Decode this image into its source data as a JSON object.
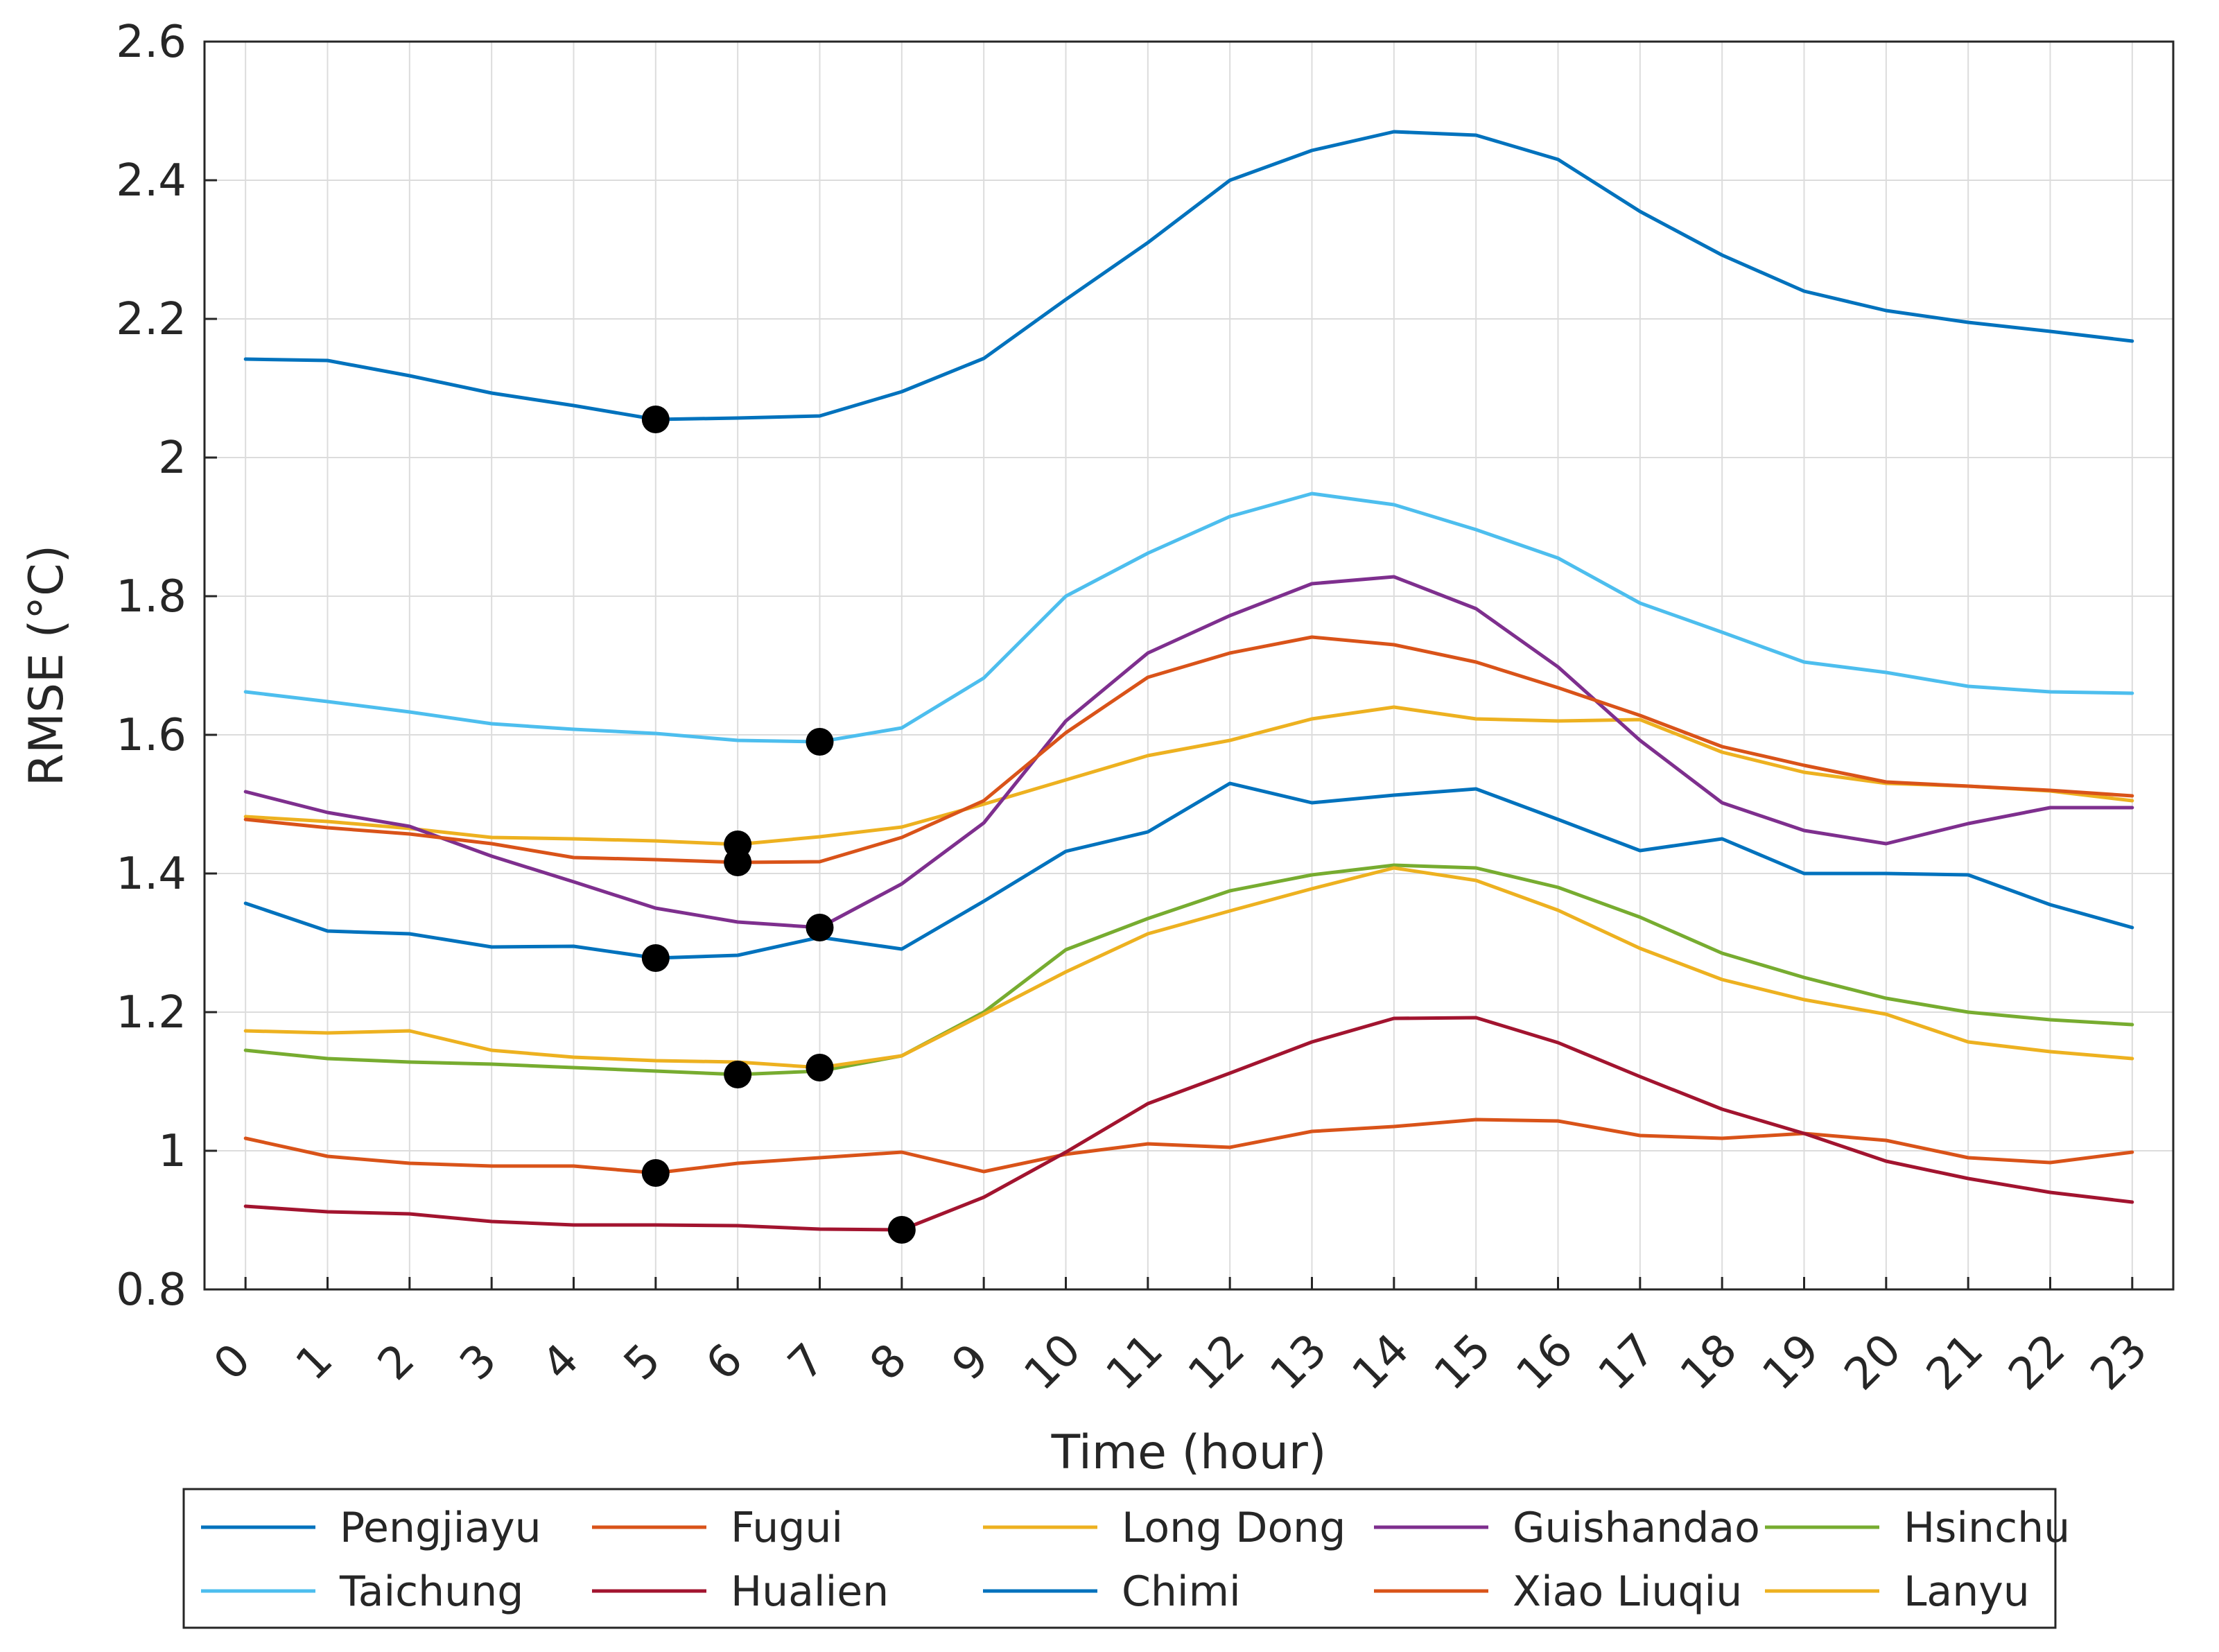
{
  "chart_data": {
    "type": "line",
    "xlabel": "Time (hour)",
    "ylabel": "RMSE (°C)",
    "xlim": [
      -0.5,
      23.5
    ],
    "ylim": [
      0.8,
      2.6
    ],
    "x": [
      0,
      1,
      2,
      3,
      4,
      5,
      6,
      7,
      8,
      9,
      10,
      11,
      12,
      13,
      14,
      15,
      16,
      17,
      18,
      19,
      20,
      21,
      22,
      23
    ],
    "x_tick_labels": [
      "0",
      "1",
      "2",
      "3",
      "4",
      "5",
      "6",
      "7",
      "8",
      "9",
      "10",
      "11",
      "12",
      "13",
      "14",
      "15",
      "16",
      "17",
      "18",
      "19",
      "20",
      "21",
      "22",
      "23"
    ],
    "y_ticks": [
      0.8,
      1.0,
      1.2,
      1.4,
      1.6,
      1.8,
      2.0,
      2.2,
      2.4,
      2.6
    ],
    "y_tick_labels": [
      "0.8",
      "1",
      "1.2",
      "1.4",
      "1.6",
      "1.8",
      "2",
      "2.2",
      "2.4",
      "2.6"
    ],
    "grid": true,
    "legend_position": "bottom",
    "series": [
      {
        "name": "Pengjiayu",
        "color": "#0072BD",
        "min_hour": 5,
        "values": [
          2.142,
          2.14,
          2.118,
          2.093,
          2.075,
          2.055,
          2.057,
          2.06,
          2.095,
          2.143,
          2.228,
          2.31,
          2.4,
          2.443,
          2.47,
          2.465,
          2.43,
          2.355,
          2.292,
          2.24,
          2.212,
          2.195,
          2.182,
          2.168
        ]
      },
      {
        "name": "Fugui",
        "color": "#D95319",
        "min_hour": 5,
        "values": [
          1.018,
          0.992,
          0.982,
          0.978,
          0.978,
          0.968,
          0.982,
          0.99,
          0.998,
          0.97,
          0.995,
          1.01,
          1.005,
          1.028,
          1.035,
          1.045,
          1.043,
          1.022,
          1.018,
          1.025,
          1.015,
          0.99,
          0.983,
          0.998
        ]
      },
      {
        "name": "Long Dong",
        "color": "#EDB120",
        "min_hour": 6,
        "values": [
          1.482,
          1.475,
          1.465,
          1.452,
          1.45,
          1.447,
          1.442,
          1.453,
          1.467,
          1.5,
          1.535,
          1.57,
          1.592,
          1.623,
          1.64,
          1.623,
          1.62,
          1.622,
          1.575,
          1.546,
          1.53,
          1.526,
          1.519,
          1.505
        ]
      },
      {
        "name": "Guishandao",
        "color": "#7E2F8E",
        "min_hour": 7,
        "values": [
          1.518,
          1.488,
          1.468,
          1.425,
          1.388,
          1.35,
          1.33,
          1.322,
          1.385,
          1.473,
          1.62,
          1.718,
          1.772,
          1.818,
          1.828,
          1.782,
          1.698,
          1.592,
          1.502,
          1.462,
          1.443,
          1.472,
          1.495,
          1.495
        ]
      },
      {
        "name": "Hsinchu",
        "color": "#77AC30",
        "min_hour": 6,
        "values": [
          1.145,
          1.133,
          1.128,
          1.125,
          1.12,
          1.115,
          1.11,
          1.115,
          1.137,
          1.2,
          1.29,
          1.335,
          1.375,
          1.398,
          1.412,
          1.408,
          1.38,
          1.337,
          1.285,
          1.25,
          1.22,
          1.2,
          1.189,
          1.182
        ]
      },
      {
        "name": "Taichung",
        "color": "#4DBEEE",
        "min_hour": 7,
        "values": [
          1.662,
          1.648,
          1.633,
          1.616,
          1.608,
          1.602,
          1.592,
          1.59,
          1.61,
          1.682,
          1.8,
          1.862,
          1.915,
          1.948,
          1.932,
          1.896,
          1.855,
          1.79,
          1.748,
          1.705,
          1.69,
          1.67,
          1.662,
          1.66
        ]
      },
      {
        "name": "Hualien",
        "color": "#A2142F",
        "min_hour": 8,
        "values": [
          0.92,
          0.912,
          0.909,
          0.898,
          0.893,
          0.893,
          0.892,
          0.887,
          0.886,
          0.933,
          0.998,
          1.068,
          1.112,
          1.157,
          1.191,
          1.192,
          1.156,
          1.107,
          1.06,
          1.025,
          0.985,
          0.96,
          0.94,
          0.926
        ]
      },
      {
        "name": "Chimi",
        "color": "#0072BD",
        "min_hour": 5,
        "values": [
          1.357,
          1.317,
          1.313,
          1.294,
          1.295,
          1.278,
          1.282,
          1.308,
          1.291,
          1.36,
          1.432,
          1.46,
          1.53,
          1.502,
          1.513,
          1.522,
          1.478,
          1.433,
          1.45,
          1.4,
          1.4,
          1.398,
          1.355,
          1.322
        ]
      },
      {
        "name": "Xiao Liuqiu",
        "color": "#D95319",
        "min_hour": 6,
        "values": [
          1.478,
          1.466,
          1.457,
          1.443,
          1.423,
          1.42,
          1.416,
          1.417,
          1.452,
          1.505,
          1.603,
          1.683,
          1.718,
          1.741,
          1.73,
          1.705,
          1.668,
          1.628,
          1.583,
          1.556,
          1.532,
          1.526,
          1.52,
          1.512
        ]
      },
      {
        "name": "Lanyu",
        "color": "#EDB120",
        "min_hour": 7,
        "values": [
          1.173,
          1.17,
          1.173,
          1.145,
          1.135,
          1.13,
          1.128,
          1.12,
          1.137,
          1.197,
          1.258,
          1.313,
          1.346,
          1.378,
          1.408,
          1.39,
          1.347,
          1.292,
          1.247,
          1.218,
          1.197,
          1.157,
          1.143,
          1.133
        ]
      }
    ]
  }
}
